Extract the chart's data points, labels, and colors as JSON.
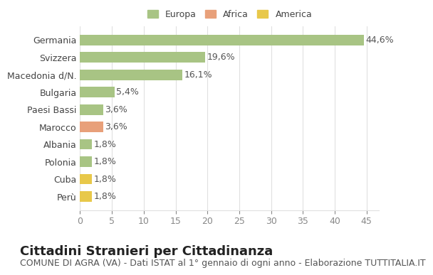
{
  "categories": [
    "Germania",
    "Svizzera",
    "Macedonia d/N.",
    "Bulgaria",
    "Paesi Bassi",
    "Marocco",
    "Albania",
    "Polonia",
    "Cuba",
    "Perù"
  ],
  "values": [
    44.6,
    19.6,
    16.1,
    5.4,
    3.6,
    3.6,
    1.8,
    1.8,
    1.8,
    1.8
  ],
  "labels": [
    "44,6%",
    "19,6%",
    "16,1%",
    "5,4%",
    "3,6%",
    "3,6%",
    "1,8%",
    "1,8%",
    "1,8%",
    "1,8%"
  ],
  "colors": [
    "#a8c484",
    "#a8c484",
    "#a8c484",
    "#a8c484",
    "#a8c484",
    "#e8a07a",
    "#a8c484",
    "#a8c484",
    "#e8c84a",
    "#e8c84a"
  ],
  "legend_items": [
    {
      "label": "Europa",
      "color": "#a8c484"
    },
    {
      "label": "Africa",
      "color": "#e8a07a"
    },
    {
      "label": "America",
      "color": "#e8c84a"
    }
  ],
  "title": "Cittadini Stranieri per Cittadinanza",
  "subtitle": "COMUNE DI AGRA (VA) - Dati ISTAT al 1° gennaio di ogni anno - Elaborazione TUTTITALIA.IT",
  "xlim": [
    0,
    47
  ],
  "xticks": [
    0,
    5,
    10,
    15,
    20,
    25,
    30,
    35,
    40,
    45
  ],
  "background_color": "#ffffff",
  "grid_color": "#e0e0e0",
  "bar_height": 0.6,
  "title_fontsize": 13,
  "subtitle_fontsize": 9,
  "tick_fontsize": 9,
  "label_fontsize": 9
}
